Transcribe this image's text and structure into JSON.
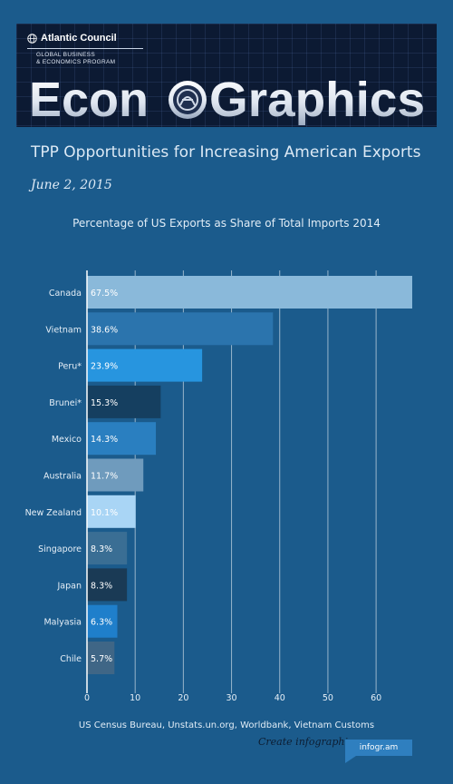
{
  "banner": {
    "org_name": "Atlantic Council",
    "program": "GLOBAL BUSINESS\n& ECONOMICS PROGRAM",
    "brand_left": "Econ",
    "brand_right": "Graphics",
    "globe_icon": "globe-icon",
    "logo_icon": "atlantic-council-seal-icon"
  },
  "header": {
    "title": "TPP Opportunities for Increasing American Exports",
    "date": "June 2, 2015"
  },
  "chart_data": {
    "type": "bar",
    "orientation": "horizontal",
    "title": "Percentage of US Exports as Share of Total Imports 2014",
    "categories": [
      "Canada",
      "Vietnam",
      "Peru*",
      "Brunei*",
      "Mexico",
      "Australia",
      "New Zealand",
      "Singapore",
      "Japan",
      "Malyasia",
      "Chile"
    ],
    "values": [
      67.5,
      38.6,
      23.9,
      15.3,
      14.3,
      11.7,
      10.1,
      8.3,
      8.3,
      6.3,
      5.7
    ],
    "value_labels": [
      "67.5%",
      "38.6%",
      "23.9%",
      "15.3%",
      "14.3%",
      "11.7%",
      "10.1%",
      "8.3%",
      "8.3%",
      "6.3%",
      "5.7%"
    ],
    "bar_colors": [
      "#8ab9da",
      "#2b74ad",
      "#2795df",
      "#153f60",
      "#2a7fc0",
      "#6f9bbd",
      "#a9d5f5",
      "#3a6e94",
      "#1a3a55",
      "#1f7fcb",
      "#3f6686"
    ],
    "xticks": [
      0,
      10,
      20,
      30,
      40,
      50,
      60
    ],
    "xlim": [
      0,
      67.5
    ],
    "xlabel": "",
    "ylabel": "",
    "grid": true
  },
  "footer": {
    "source": "US Census Bureau, Unstats.un.org, Worldbank, Vietnam Customs",
    "create_link": "Create infographics",
    "badge": "infogr.am"
  }
}
